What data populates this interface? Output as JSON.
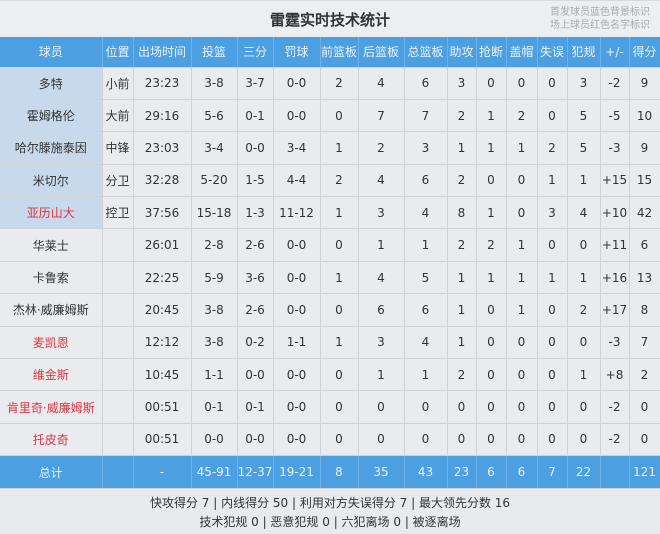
{
  "title": "雷霆实时技术统计",
  "legend": [
    "首发球员蓝色背景标识",
    "场上球员红色名字标识"
  ],
  "colors": {
    "header": "#4c9fe0",
    "starter_bg": "#c8d9ec",
    "on_court_name": "#e0353f"
  },
  "columns": [
    "球员",
    "位置",
    "出场时间",
    "投篮",
    "三分",
    "罚球",
    "前篮板",
    "后篮板",
    "总篮板",
    "助攻",
    "抢断",
    "盖帽",
    "失误",
    "犯规",
    "+/-",
    "得分"
  ],
  "rows": [
    {
      "starter": true,
      "on_court": false,
      "cells": [
        "多特",
        "小前",
        "23:23",
        "3-8",
        "3-7",
        "0-0",
        "2",
        "4",
        "6",
        "3",
        "0",
        "0",
        "0",
        "3",
        "-2",
        "9"
      ]
    },
    {
      "starter": true,
      "on_court": false,
      "cells": [
        "霍姆格伦",
        "大前",
        "29:16",
        "5-6",
        "0-1",
        "0-0",
        "0",
        "7",
        "7",
        "2",
        "1",
        "2",
        "0",
        "5",
        "-5",
        "10"
      ]
    },
    {
      "starter": true,
      "on_court": false,
      "cells": [
        "哈尔滕施泰因",
        "中锋",
        "23:03",
        "3-4",
        "0-0",
        "3-4",
        "1",
        "2",
        "3",
        "1",
        "1",
        "1",
        "2",
        "5",
        "-3",
        "9"
      ]
    },
    {
      "starter": true,
      "on_court": false,
      "cells": [
        "米切尔",
        "分卫",
        "32:28",
        "5-20",
        "1-5",
        "4-4",
        "2",
        "4",
        "6",
        "2",
        "0",
        "0",
        "1",
        "1",
        "+15",
        "15"
      ]
    },
    {
      "starter": true,
      "on_court": true,
      "cells": [
        "亚历山大",
        "控卫",
        "37:56",
        "15-18",
        "1-3",
        "11-12",
        "1",
        "3",
        "4",
        "8",
        "1",
        "0",
        "3",
        "4",
        "+10",
        "42"
      ]
    },
    {
      "starter": false,
      "on_court": false,
      "cells": [
        "华莱士",
        "",
        "26:01",
        "2-8",
        "2-6",
        "0-0",
        "0",
        "1",
        "1",
        "2",
        "2",
        "1",
        "0",
        "0",
        "+11",
        "6"
      ]
    },
    {
      "starter": false,
      "on_court": false,
      "cells": [
        "卡鲁索",
        "",
        "22:25",
        "5-9",
        "3-6",
        "0-0",
        "1",
        "4",
        "5",
        "1",
        "1",
        "1",
        "1",
        "1",
        "+16",
        "13"
      ]
    },
    {
      "starter": false,
      "on_court": false,
      "cells": [
        "杰林·威廉姆斯",
        "",
        "20:45",
        "3-8",
        "2-6",
        "0-0",
        "0",
        "6",
        "6",
        "1",
        "0",
        "1",
        "0",
        "2",
        "+17",
        "8"
      ]
    },
    {
      "starter": false,
      "on_court": true,
      "cells": [
        "麦凯恩",
        "",
        "12:12",
        "3-8",
        "0-2",
        "1-1",
        "1",
        "3",
        "4",
        "1",
        "0",
        "0",
        "0",
        "0",
        "-3",
        "7"
      ]
    },
    {
      "starter": false,
      "on_court": true,
      "cells": [
        "维金斯",
        "",
        "10:45",
        "1-1",
        "0-0",
        "0-0",
        "0",
        "1",
        "1",
        "2",
        "0",
        "0",
        "0",
        "1",
        "+8",
        "2"
      ]
    },
    {
      "starter": false,
      "on_court": true,
      "cells": [
        "肯里奇·威廉姆斯",
        "",
        "00:51",
        "0-1",
        "0-1",
        "0-0",
        "0",
        "0",
        "0",
        "0",
        "0",
        "0",
        "0",
        "0",
        "-2",
        "0"
      ]
    },
    {
      "starter": false,
      "on_court": true,
      "cells": [
        "托皮奇",
        "",
        "00:51",
        "0-0",
        "0-0",
        "0-0",
        "0",
        "0",
        "0",
        "0",
        "0",
        "0",
        "0",
        "0",
        "-2",
        "0"
      ]
    }
  ],
  "total": [
    "总计",
    "",
    "-",
    "45-91",
    "12-37",
    "19-21",
    "8",
    "35",
    "43",
    "23",
    "6",
    "6",
    "7",
    "22",
    "",
    "121"
  ],
  "footer": [
    "快攻得分 7 | 内线得分 50 | 利用对方失误得分 7 | 最大领先分数 16",
    "技术犯规 0 | 恶意犯规 0 | 六犯离场 0 | 被逐离场"
  ]
}
